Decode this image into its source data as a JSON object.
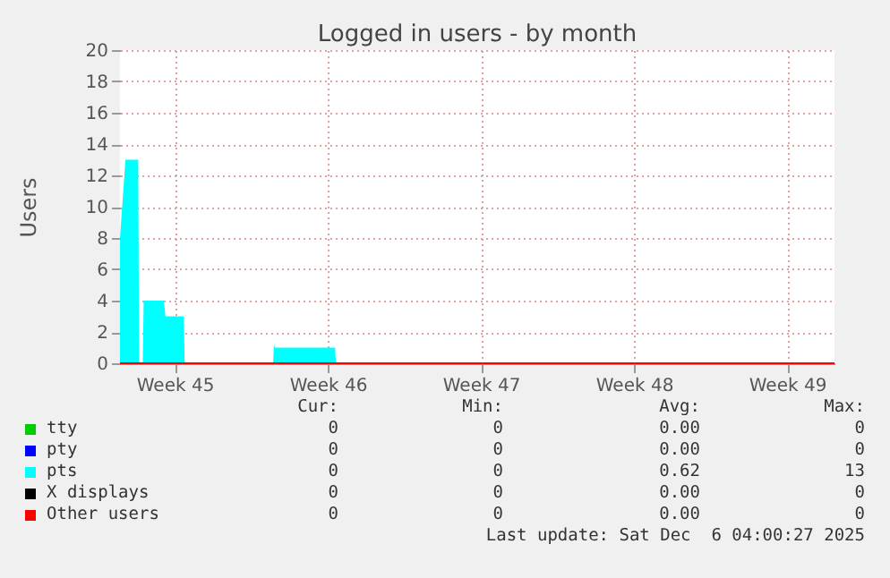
{
  "chart_data": {
    "type": "area",
    "title": "Logged in users - by month",
    "ylabel": "Users",
    "xlim": [
      "2025-11-03T12:00",
      "2025-12-06T04:00"
    ],
    "xticks": [
      {
        "value": "2025-11-06",
        "label": "Week 45"
      },
      {
        "value": "2025-11-13",
        "label": "Week 46"
      },
      {
        "value": "2025-11-20",
        "label": "Week 47"
      },
      {
        "value": "2025-11-27",
        "label": "Week 48"
      },
      {
        "value": "2025-12-04",
        "label": "Week 49"
      }
    ],
    "ylim": [
      0,
      20
    ],
    "yticks": [
      0,
      2,
      4,
      6,
      8,
      10,
      12,
      14,
      16,
      18,
      20
    ],
    "grid": true,
    "legend": "bottom",
    "series": [
      {
        "name": "tty",
        "type": "line",
        "color": "#00cc00"
      },
      {
        "name": "pty",
        "type": "line",
        "color": "#0000ff"
      },
      {
        "name": "pts",
        "color": "#00ffff",
        "x": [
          "2025-11-03T12:00",
          "2025-11-03T18:00",
          "2025-11-04T08:00",
          "2025-11-04T09:00",
          "2025-11-04T13:00",
          "2025-11-04T14:00",
          "2025-11-05T12:00",
          "2025-11-05T14:00",
          "2025-11-06T10:00",
          "2025-11-06T11:00",
          "2025-11-10T12:00",
          "2025-11-10T13:00",
          "2025-11-10T14:00",
          "2025-11-13T08:00",
          "2025-11-13T09:00",
          "2025-12-06T04:00"
        ],
        "values": [
          8,
          13,
          13,
          0,
          0,
          4,
          4,
          3,
          3,
          0,
          0,
          1.2,
          1,
          1,
          0,
          0
        ]
      },
      {
        "name": "X displays",
        "type": "line",
        "color": "#000000"
      },
      {
        "name": "Other users",
        "type": "line",
        "color": "#ff0000",
        "x": [
          "2025-11-03T12:00",
          "2025-12-06T04:00"
        ],
        "values": [
          0,
          0
        ]
      }
    ],
    "annotations": [
      "Cur:",
      "Min:",
      "Avg:",
      "Max:",
      "0",
      "0",
      "0.00",
      "0",
      "0",
      "0",
      "0.00",
      "0",
      "0",
      "0",
      "0.62",
      "13",
      "0",
      "0",
      "0.00",
      "0",
      "0",
      "0",
      "0.00",
      "0",
      "Last update: Sat Dec  6 04:00:27 2025"
    ]
  }
}
